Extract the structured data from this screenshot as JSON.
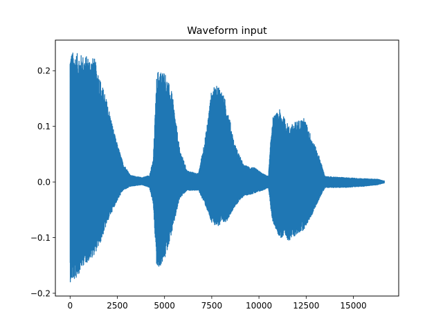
{
  "chart_data": {
    "type": "line",
    "title": "Waveform input",
    "xlabel": "",
    "ylabel": "",
    "xlim": [
      -780,
      17400
    ],
    "ylim": [
      -0.205,
      0.255
    ],
    "xticks": [
      0,
      2500,
      5000,
      7500,
      10000,
      12500,
      15000
    ],
    "xtick_labels": [
      "0",
      "2500",
      "5000",
      "7500",
      "10000",
      "12500",
      "15000"
    ],
    "yticks": [
      -0.2,
      -0.1,
      0.0,
      0.1,
      0.2
    ],
    "ytick_labels": [
      "−0.2",
      "−0.1",
      "0.0",
      "0.1",
      "0.2"
    ],
    "grid": false,
    "legend": "none",
    "series": [
      {
        "color": "#1f77b4",
        "n_samples": 16640,
        "upper_envelope": [
          [
            0,
            0.235
          ],
          [
            300,
            0.232
          ],
          [
            700,
            0.228
          ],
          [
            1000,
            0.226
          ],
          [
            1300,
            0.222
          ],
          [
            1600,
            0.185
          ],
          [
            2000,
            0.14
          ],
          [
            2400,
            0.08
          ],
          [
            2800,
            0.035
          ],
          [
            3200,
            0.012
          ],
          [
            3800,
            0.008
          ],
          [
            4200,
            0.012
          ],
          [
            4400,
            0.04
          ],
          [
            4600,
            0.2
          ],
          [
            5000,
            0.2
          ],
          [
            5400,
            0.16
          ],
          [
            5800,
            0.06
          ],
          [
            6200,
            0.02
          ],
          [
            6800,
            0.015
          ],
          [
            7200,
            0.09
          ],
          [
            7500,
            0.168
          ],
          [
            7900,
            0.175
          ],
          [
            8300,
            0.14
          ],
          [
            8700,
            0.07
          ],
          [
            9200,
            0.03
          ],
          [
            9800,
            0.025
          ],
          [
            10200,
            0.015
          ],
          [
            10500,
            0.01
          ],
          [
            10700,
            0.115
          ],
          [
            11100,
            0.13
          ],
          [
            11600,
            0.1
          ],
          [
            12000,
            0.11
          ],
          [
            12400,
            0.115
          ],
          [
            12800,
            0.08
          ],
          [
            13200,
            0.045
          ],
          [
            13500,
            0.01
          ],
          [
            14500,
            0.008
          ],
          [
            15500,
            0.006
          ],
          [
            16300,
            0.005
          ],
          [
            16600,
            0.002
          ]
        ],
        "lower_envelope": [
          [
            0,
            -0.18
          ],
          [
            300,
            -0.175
          ],
          [
            700,
            -0.15
          ],
          [
            1000,
            -0.142
          ],
          [
            1300,
            -0.13
          ],
          [
            1600,
            -0.11
          ],
          [
            2000,
            -0.07
          ],
          [
            2400,
            -0.04
          ],
          [
            2800,
            -0.015
          ],
          [
            3200,
            -0.008
          ],
          [
            3800,
            -0.005
          ],
          [
            4200,
            -0.01
          ],
          [
            4400,
            -0.04
          ],
          [
            4600,
            -0.16
          ],
          [
            5000,
            -0.14
          ],
          [
            5400,
            -0.09
          ],
          [
            5800,
            -0.03
          ],
          [
            6200,
            -0.015
          ],
          [
            6800,
            -0.015
          ],
          [
            7200,
            -0.045
          ],
          [
            7500,
            -0.075
          ],
          [
            7900,
            -0.08
          ],
          [
            8300,
            -0.07
          ],
          [
            8700,
            -0.045
          ],
          [
            9200,
            -0.025
          ],
          [
            9800,
            -0.02
          ],
          [
            10200,
            -0.015
          ],
          [
            10500,
            -0.01
          ],
          [
            10700,
            -0.07
          ],
          [
            11100,
            -0.1
          ],
          [
            11600,
            -0.105
          ],
          [
            12000,
            -0.095
          ],
          [
            12400,
            -0.085
          ],
          [
            12800,
            -0.06
          ],
          [
            13200,
            -0.03
          ],
          [
            13500,
            -0.01
          ],
          [
            14500,
            -0.01
          ],
          [
            15500,
            -0.008
          ],
          [
            16300,
            -0.005
          ],
          [
            16600,
            -0.002
          ]
        ]
      }
    ]
  }
}
